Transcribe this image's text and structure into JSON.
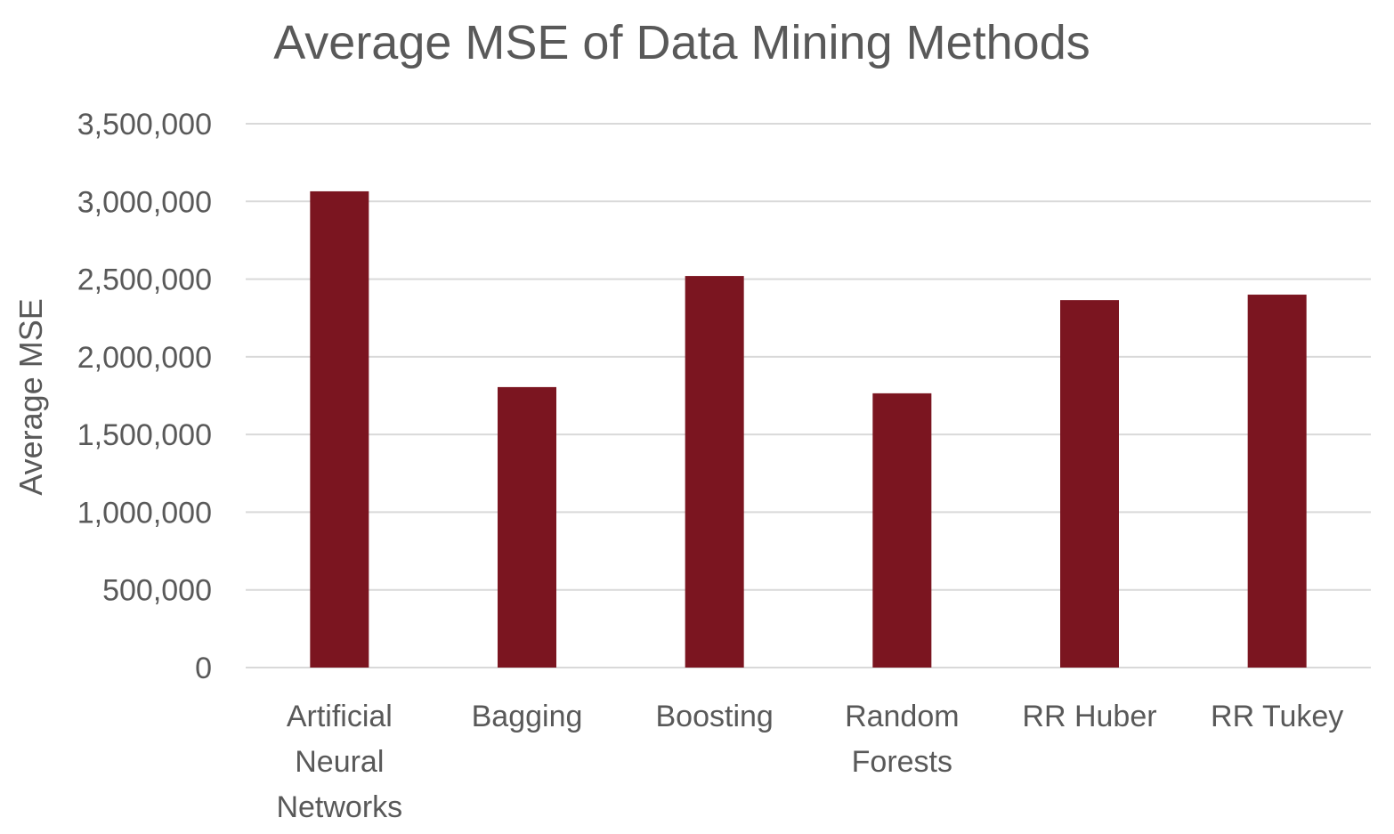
{
  "chart_data": {
    "type": "bar",
    "title": "Average MSE of Data Mining Methods",
    "xlabel": "",
    "ylabel": "Average MSE",
    "categories": [
      "Artificial Neural Networks",
      "Bagging",
      "Boosting",
      "Random Forests",
      "RR Huber",
      "RR Tukey"
    ],
    "category_lines": [
      [
        "Artificial",
        "Neural",
        "Networks"
      ],
      [
        "Bagging"
      ],
      [
        "Boosting"
      ],
      [
        "Random",
        "Forests"
      ],
      [
        "RR Huber"
      ],
      [
        "RR Tukey"
      ]
    ],
    "values": [
      3065000,
      1805000,
      2520000,
      1765000,
      2365000,
      2400000
    ],
    "ylim": [
      0,
      3500000
    ],
    "yticks": [
      0,
      500000,
      1000000,
      1500000,
      2000000,
      2500000,
      3000000,
      3500000
    ],
    "ytick_labels": [
      "0",
      "500,000",
      "1,000,000",
      "1,500,000",
      "2,000,000",
      "2,500,000",
      "3,000,000",
      "3,500,000"
    ],
    "grid": true,
    "legend": "none",
    "colors": {
      "bar": "#7B1520",
      "grid": "#D9D9D9",
      "text": "#595959"
    }
  }
}
